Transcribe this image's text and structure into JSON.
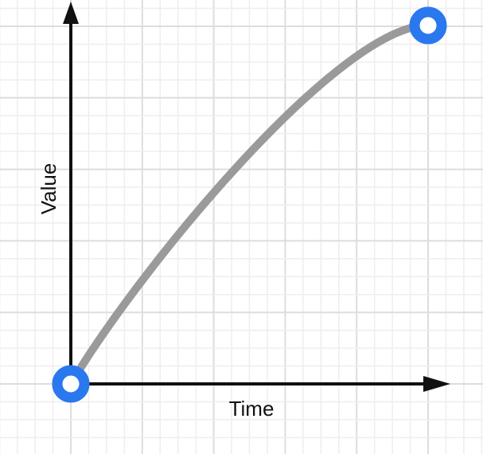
{
  "diagram": {
    "y_axis_label": "Value",
    "x_axis_label": "Time",
    "colors": {
      "curve": "#9a9a9a",
      "endpoint": "#2a78ee",
      "axis": "#111111",
      "grid_minor": "#eeeeee",
      "grid_major": "#dddddd"
    },
    "curve_shape": "ease-out"
  }
}
